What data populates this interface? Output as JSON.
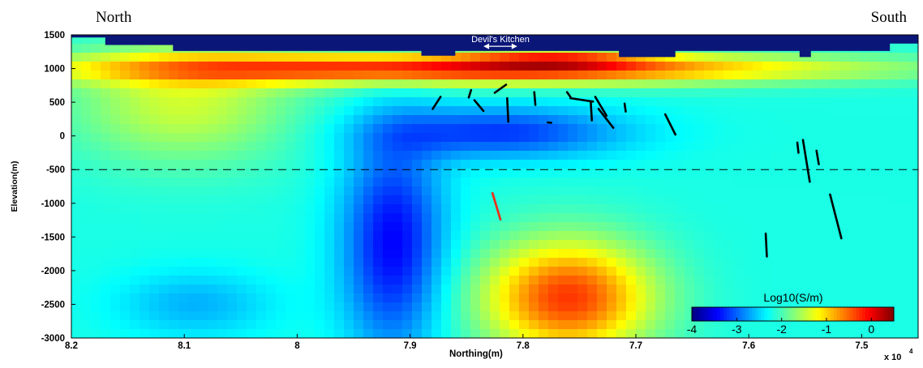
{
  "header": {
    "left": "North",
    "right": "South"
  },
  "chart_data": {
    "type": "heatmap",
    "title": "",
    "xlabel": "Northing(m)",
    "ylabel": "Elevation(m)",
    "x_exponent_label": "x 10",
    "x_exponent_power": "4",
    "xlim": [
      8.2,
      7.45
    ],
    "ylim": [
      -3000,
      1500
    ],
    "x_reversed": true,
    "x_ticks": [
      8.2,
      8.1,
      8,
      7.9,
      7.8,
      7.7,
      7.6,
      7.5
    ],
    "x_tick_labels": [
      "8.2",
      "8.1",
      "8",
      "7.9",
      "7.8",
      "7.7",
      "7.6",
      "7.5"
    ],
    "y_ticks": [
      1500,
      1000,
      500,
      0,
      -500,
      -1000,
      -1500,
      -2000,
      -2500,
      -3000
    ],
    "y_tick_labels": [
      "1500",
      "1000",
      "500",
      "0",
      "-500",
      "-1000",
      "-1500",
      "-2000",
      "-2500",
      "-3000"
    ],
    "colormap": "jet",
    "colorbar": {
      "label": "Log10(S/m)",
      "range": [
        -4,
        0.5
      ],
      "ticks": [
        -4,
        -3,
        -2,
        -1,
        0
      ],
      "tick_labels": [
        "-4",
        "-3",
        "-2",
        "-1",
        "0"
      ],
      "placement": "bottom-right"
    },
    "reference_line": {
      "y": -500,
      "style": "dashed"
    },
    "annotation": {
      "text": "Devil's Kitchen",
      "x_range": [
        7.835,
        7.805
      ],
      "y": 1330
    },
    "background_value": -2.2,
    "anomalies": [
      {
        "kind": "conductive-cap",
        "x_center": 7.86,
        "x_half_width": 0.33,
        "y_center": 1000,
        "y_half_width": 230,
        "amplitude": 2.1
      },
      {
        "kind": "conductive-cap-peak",
        "x_center": 7.77,
        "x_half_width": 0.08,
        "y_center": 1150,
        "y_half_width": 180,
        "amplitude": 0.9
      },
      {
        "kind": "conductive-flank",
        "x_center": 8.1,
        "x_half_width": 0.1,
        "y_center": 500,
        "y_half_width": 900,
        "amplitude": 0.8
      },
      {
        "kind": "deep-conductor",
        "x_center": 7.76,
        "x_half_width": 0.075,
        "y_center": -2400,
        "y_half_width": 850,
        "amplitude": 1.9
      },
      {
        "kind": "resistive-column",
        "x_center": 7.915,
        "x_half_width": 0.045,
        "y_center": -1600,
        "y_half_width": 1600,
        "amplitude": -1.25
      },
      {
        "kind": "resistive-arm",
        "x_center": 7.82,
        "x_half_width": 0.11,
        "y_center": 50,
        "y_half_width": 380,
        "amplitude": -1.0
      },
      {
        "kind": "resistive-deep-left",
        "x_center": 8.09,
        "x_half_width": 0.07,
        "y_center": -2500,
        "y_half_width": 500,
        "amplitude": -0.45
      }
    ],
    "topography": [
      [
        8.2,
        1460
      ],
      [
        8.17,
        1460
      ],
      [
        8.17,
        1350
      ],
      [
        8.11,
        1350
      ],
      [
        8.11,
        1260
      ],
      [
        7.89,
        1260
      ],
      [
        7.89,
        1190
      ],
      [
        7.86,
        1190
      ],
      [
        7.86,
        1260
      ],
      [
        7.715,
        1260
      ],
      [
        7.715,
        1170
      ],
      [
        7.665,
        1170
      ],
      [
        7.665,
        1260
      ],
      [
        7.555,
        1260
      ],
      [
        7.555,
        1170
      ],
      [
        7.545,
        1170
      ],
      [
        7.545,
        1260
      ],
      [
        7.475,
        1260
      ],
      [
        7.475,
        1370
      ],
      [
        7.45,
        1370
      ]
    ],
    "wells_black": [
      [
        [
          7.88,
          400
        ],
        [
          7.873,
          580
        ]
      ],
      [
        [
          7.848,
          570
        ],
        [
          7.846,
          680
        ]
      ],
      [
        [
          7.843,
          530
        ],
        [
          7.835,
          370
        ]
      ],
      [
        [
          7.825,
          640
        ],
        [
          7.815,
          760
        ]
      ],
      [
        [
          7.814,
          560
        ],
        [
          7.813,
          210
        ]
      ],
      [
        [
          7.79,
          650
        ],
        [
          7.789,
          460
        ]
      ],
      [
        [
          7.778,
          200
        ],
        [
          7.775,
          195
        ]
      ],
      [
        [
          7.761,
          650
        ],
        [
          7.758,
          580
        ]
      ],
      [
        [
          7.758,
          560
        ],
        [
          7.738,
          510
        ]
      ],
      [
        [
          7.74,
          510
        ],
        [
          7.739,
          230
        ]
      ],
      [
        [
          7.736,
          580
        ],
        [
          7.726,
          300
        ]
      ],
      [
        [
          7.733,
          400
        ],
        [
          7.72,
          120
        ]
      ],
      [
        [
          7.71,
          480
        ],
        [
          7.709,
          360
        ]
      ],
      [
        [
          7.674,
          320
        ],
        [
          7.665,
          20
        ]
      ],
      [
        [
          7.557,
          -100
        ],
        [
          7.556,
          -250
        ]
      ],
      [
        [
          7.552,
          -60
        ],
        [
          7.546,
          -680
        ]
      ],
      [
        [
          7.54,
          -220
        ],
        [
          7.538,
          -420
        ]
      ],
      [
        [
          7.528,
          -870
        ],
        [
          7.518,
          -1520
        ]
      ],
      [
        [
          7.585,
          -1450
        ],
        [
          7.584,
          -1790
        ]
      ]
    ],
    "wells_red": [
      [
        [
          7.827,
          -850
        ],
        [
          7.82,
          -1240
        ]
      ]
    ]
  }
}
